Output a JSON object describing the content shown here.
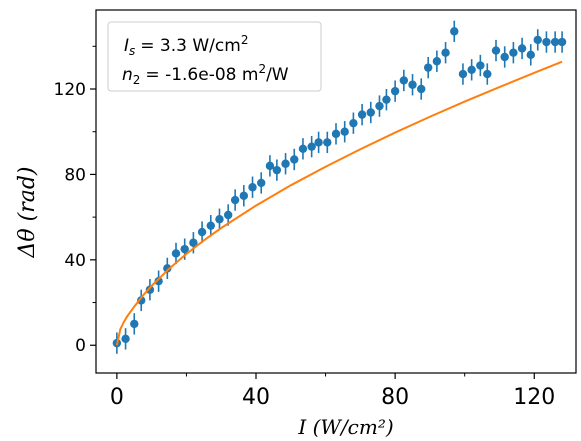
{
  "chart_data": {
    "type": "scatter",
    "xlabel": "I (W/cm²)",
    "ylabel": "Δθ (rad)",
    "xlim": [
      -6,
      132
    ],
    "ylim": [
      -13,
      157
    ],
    "xticks": [
      0,
      40,
      80,
      120
    ],
    "yticks": [
      0,
      40,
      80,
      120
    ],
    "x_minor_ticks": [
      20,
      60,
      100
    ],
    "y_minor_ticks": [
      20,
      60,
      100,
      140
    ],
    "grid": false,
    "legend_position": "top-left",
    "annotation": {
      "line1_text": "= 3.3 W/cm",
      "line1_symbol": "I",
      "line1_sub": "s",
      "line1_sup": "2",
      "line2_symbol": "n",
      "line2_sub": "2",
      "line2_text": "= -1.6e-08 m",
      "line2_sup": "2",
      "line2_unit": "/W"
    },
    "series": [
      {
        "kind": "measured",
        "color": "#1f77b4",
        "x": [
          0,
          2.5,
          5,
          7,
          9.5,
          12,
          14.5,
          17,
          19.5,
          22,
          24.5,
          27,
          29.5,
          32,
          34,
          36.5,
          39,
          41.5,
          44,
          46,
          48.5,
          51,
          53.5,
          56,
          58,
          60.5,
          63,
          65.5,
          68,
          70.5,
          73,
          75.5,
          77.5,
          80,
          82.5,
          85,
          87.5,
          89.5,
          92,
          94.5,
          97,
          99.5,
          102,
          104.5,
          106.5,
          109,
          111.5,
          114,
          116.5,
          119,
          121,
          123.5,
          126,
          128
        ],
        "y": [
          1,
          3,
          10,
          21,
          26,
          30,
          36,
          43,
          45,
          48,
          53,
          56,
          59,
          61,
          68,
          70,
          74,
          76,
          84,
          82,
          85,
          87,
          92,
          93,
          95,
          95,
          99,
          100,
          104,
          108,
          109,
          112,
          115,
          119,
          124,
          122,
          120,
          130,
          133,
          137,
          147,
          127,
          129,
          131,
          127,
          138,
          135,
          137,
          139,
          136,
          143,
          142,
          142,
          142
        ],
        "error": 5
      },
      {
        "kind": "fit",
        "color": "#ff7f0e",
        "x": [
          0,
          1,
          2,
          3,
          5,
          7.5,
          10,
          15,
          20,
          25,
          30,
          40,
          50,
          60,
          70,
          80,
          90,
          100,
          110,
          120,
          128
        ],
        "y": [
          0,
          7.5,
          10.9,
          13.6,
          18.1,
          23.3,
          27.8,
          35.8,
          42.8,
          49.1,
          54.9,
          65.4,
          74.9,
          83.6,
          91.8,
          99.6,
          107.0,
          114.1,
          120.9,
          127.6,
          132.8
        ]
      }
    ]
  }
}
